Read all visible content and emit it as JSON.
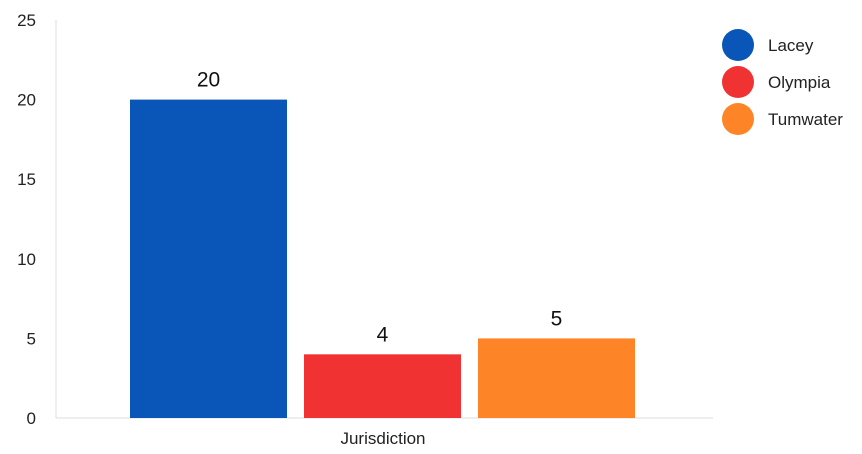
{
  "chart_data": {
    "type": "bar",
    "xlabel": "Jurisdiction",
    "ylabel": "",
    "ylim": [
      0,
      25
    ],
    "yticks": [
      0,
      5,
      10,
      15,
      20,
      25
    ],
    "grid": false,
    "legend_position": "top-right",
    "series": [
      {
        "name": "Lacey",
        "value": 20,
        "color": "#0a55b8"
      },
      {
        "name": "Olympia",
        "value": 4,
        "color": "#f03232"
      },
      {
        "name": "Tumwater",
        "value": 5,
        "color": "#fd8527"
      }
    ]
  }
}
